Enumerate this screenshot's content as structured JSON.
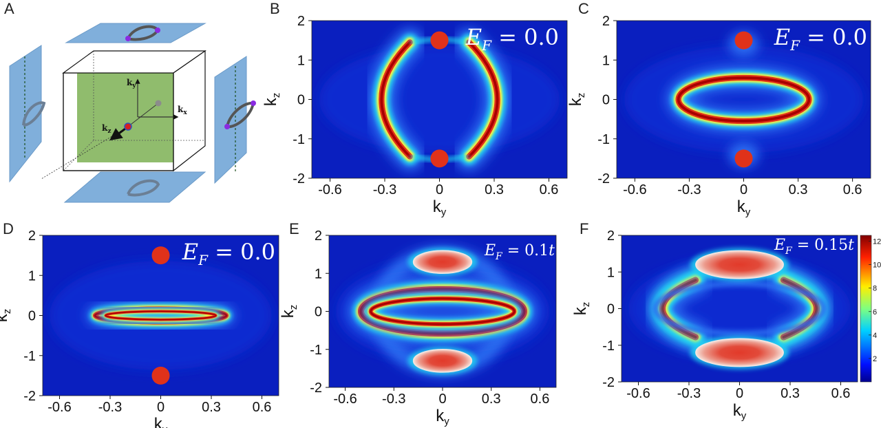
{
  "panel_labels": [
    "A",
    "B",
    "C",
    "D",
    "E",
    "F"
  ],
  "schematic_axes": {
    "x": "k",
    "x_sub": "x",
    "y": "k",
    "y_sub": "y",
    "z": "k",
    "z_sub": "z"
  },
  "colorbar": {
    "ticks": [
      "2",
      "4",
      "6",
      "8",
      "10",
      "12"
    ],
    "range": [
      0,
      12.5
    ]
  },
  "colors": {
    "low": "#0a1fbf",
    "high": "#a50000",
    "dot": "#e0321a",
    "plane": "#7fb0de",
    "slab": "#8ab865"
  },
  "chart_data": [
    {
      "type": "heatmap",
      "panel": "B",
      "xlabel": "k",
      "xlabel_sub": "y",
      "ylabel": "k",
      "ylabel_sub": "z",
      "xlim": [
        -0.7,
        0.7
      ],
      "ylim": [
        -2,
        2
      ],
      "xticks": [
        "-0.6",
        "-0.3",
        "0",
        "0.3",
        "0.6"
      ],
      "yticks": [
        "2",
        "1",
        "0",
        "-1",
        "-2"
      ],
      "annotation": {
        "base": "E",
        "sub": "F",
        "rest": " = 0.0"
      },
      "features": {
        "arcs_ky": 0.36,
        "arcs_half_height_kz": 1.45,
        "dots_kz": [
          1.5,
          -1.5
        ],
        "dots_ky": 0.0
      }
    },
    {
      "type": "heatmap",
      "panel": "C",
      "xlabel": "k",
      "xlabel_sub": "y",
      "ylabel": "k",
      "ylabel_sub": "z",
      "xlim": [
        -0.7,
        0.7
      ],
      "ylim": [
        -2,
        2
      ],
      "xticks": [
        "-0.6",
        "-0.3",
        "0",
        "0.3",
        "0.6"
      ],
      "yticks": [
        "2",
        "1",
        "0",
        "-1",
        "-2"
      ],
      "annotation": {
        "base": "E",
        "sub": "F",
        "rest": " = 0.0"
      },
      "features": {
        "ring_ky_radius": 0.3,
        "ring_kz_radius": 0.55,
        "dots_kz": [
          1.5,
          -1.5
        ],
        "dots_ky": 0.0
      }
    },
    {
      "type": "heatmap",
      "panel": "D",
      "xlabel": "k",
      "xlabel_sub": "y",
      "ylabel": "k",
      "ylabel_sub": "z",
      "xlim": [
        -0.7,
        0.7
      ],
      "ylim": [
        -2,
        2
      ],
      "xticks": [
        "-0.6",
        "-0.3",
        "0",
        "0.3",
        "0.6"
      ],
      "yticks": [
        "2",
        "1",
        "0",
        "-1",
        "-2"
      ],
      "annotation": {
        "base": "E",
        "sub": "F",
        "rest": " = 0.0"
      },
      "features": {
        "ring_ky_radius": 0.3,
        "ring_kz_radius": 0.3,
        "dots_kz": [
          1.5,
          -1.5
        ],
        "dots_ky": 0.0
      }
    },
    {
      "type": "heatmap",
      "panel": "E",
      "xlabel": "k",
      "xlabel_sub": "y",
      "ylabel": "k",
      "ylabel_sub": "z",
      "xlim": [
        -0.7,
        0.7
      ],
      "ylim": [
        -2,
        2
      ],
      "xticks": [
        "-0.6",
        "-0.3",
        "0",
        "0.3",
        "0.6"
      ],
      "yticks": [
        "2",
        "1",
        "0",
        "-1",
        "-2"
      ],
      "annotation": {
        "base": "E",
        "sub": "F",
        "rest": " = 0.1",
        "suffix": "t"
      },
      "features": {
        "ring_ky_radius": 0.47,
        "ring_kz_radius": 0.58,
        "pockets_kz": [
          1.3,
          -1.3
        ],
        "pocket_ky_radius": 0.18,
        "pocket_kz_radius": 0.3
      }
    },
    {
      "type": "heatmap",
      "panel": "F",
      "xlabel": "k",
      "xlabel_sub": "y",
      "ylabel": "k",
      "ylabel_sub": "z",
      "xlim": [
        -0.7,
        0.7
      ],
      "ylim": [
        -2,
        2
      ],
      "xticks": [
        "-0.6",
        "-0.3",
        "0",
        "0.3",
        "0.6"
      ],
      "yticks": [
        "2",
        "1",
        "0",
        "-1",
        "-2"
      ],
      "annotation": {
        "base": "E",
        "sub": "F",
        "rest": " = 0.15",
        "suffix": "t"
      },
      "features": {
        "arcs_ky": 0.58,
        "pockets_kz": [
          1.2,
          -1.2
        ],
        "pocket_ky_radius": 0.26,
        "pocket_kz_radius": 0.38
      }
    }
  ]
}
